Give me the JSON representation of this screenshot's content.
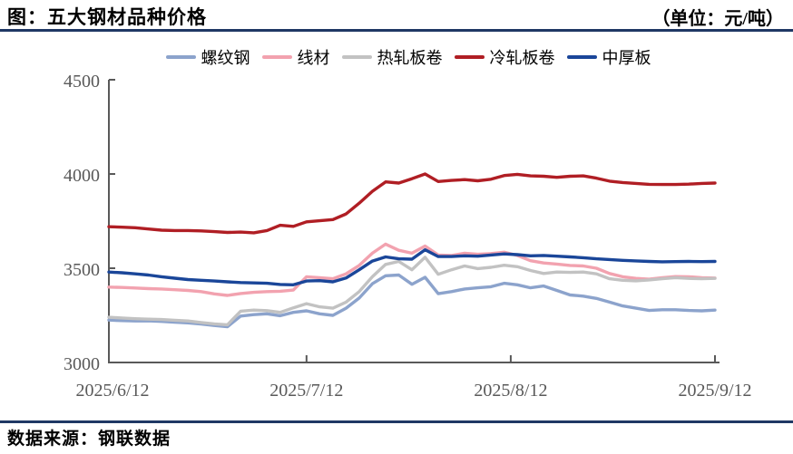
{
  "header": {
    "title": "图：五大钢材品种价格",
    "unit": "（单位：元/吨）"
  },
  "footer": {
    "source": "数据来源：钢联数据"
  },
  "colors": {
    "rule": "#1F3864",
    "axis": "#595959",
    "background": "#FFFFFF"
  },
  "chart_data": {
    "type": "line",
    "title": "五大钢材品种价格",
    "unit": "元/吨",
    "grid": false,
    "legend_position": "top",
    "ylim": [
      3000,
      4500
    ],
    "y_ticks": [
      3000,
      3500,
      4000,
      4500
    ],
    "x_tick_labels": [
      "2025/6/12",
      "2025/7/12",
      "2025/8/12",
      "2025/9/12"
    ],
    "x_tick_days": [
      0,
      30,
      61,
      92
    ],
    "x_days": [
      0,
      2,
      4,
      6,
      8,
      10,
      12,
      14,
      16,
      18,
      20,
      22,
      24,
      26,
      28,
      30,
      32,
      34,
      36,
      38,
      40,
      42,
      44,
      46,
      48,
      50,
      52,
      54,
      56,
      58,
      60,
      62,
      64,
      66,
      68,
      70,
      72,
      74,
      76,
      78,
      80,
      82,
      84,
      86,
      88,
      90,
      92
    ],
    "series": [
      {
        "name": "螺纹钢",
        "slug": "rebar",
        "color": "#8CA3CC",
        "values": [
          3225,
          3222,
          3220,
          3221,
          3218,
          3214,
          3210,
          3204,
          3196,
          3190,
          3246,
          3254,
          3258,
          3248,
          3266,
          3274,
          3258,
          3250,
          3288,
          3342,
          3418,
          3460,
          3464,
          3415,
          3452,
          3365,
          3376,
          3390,
          3396,
          3402,
          3420,
          3412,
          3396,
          3406,
          3382,
          3358,
          3352,
          3340,
          3320,
          3300,
          3288,
          3276,
          3280,
          3280,
          3276,
          3274,
          3278
        ]
      },
      {
        "name": "线材",
        "slug": "wire-rod",
        "color": "#F2A2AF",
        "values": [
          3400,
          3398,
          3395,
          3392,
          3390,
          3386,
          3382,
          3376,
          3364,
          3356,
          3366,
          3372,
          3376,
          3378,
          3384,
          3455,
          3450,
          3444,
          3470,
          3515,
          3580,
          3628,
          3595,
          3580,
          3618,
          3570,
          3568,
          3580,
          3574,
          3578,
          3585,
          3568,
          3540,
          3528,
          3522,
          3515,
          3512,
          3500,
          3472,
          3455,
          3446,
          3442,
          3450,
          3456,
          3455,
          3450,
          3448
        ]
      },
      {
        "name": "热轧板卷",
        "slug": "hot-rolled-coil",
        "color": "#C2C2C2",
        "values": [
          3240,
          3236,
          3232,
          3230,
          3228,
          3224,
          3220,
          3212,
          3205,
          3200,
          3272,
          3278,
          3275,
          3266,
          3290,
          3312,
          3295,
          3288,
          3320,
          3376,
          3455,
          3520,
          3536,
          3492,
          3558,
          3468,
          3492,
          3512,
          3498,
          3505,
          3516,
          3508,
          3488,
          3472,
          3480,
          3478,
          3480,
          3470,
          3444,
          3436,
          3433,
          3438,
          3444,
          3450,
          3446,
          3444,
          3446
        ]
      },
      {
        "name": "冷轧板卷",
        "slug": "cold-rolled-coil",
        "color": "#B01E24",
        "values": [
          3720,
          3718,
          3715,
          3708,
          3702,
          3700,
          3700,
          3698,
          3694,
          3690,
          3692,
          3688,
          3700,
          3728,
          3722,
          3746,
          3752,
          3758,
          3788,
          3845,
          3908,
          3958,
          3952,
          3975,
          4000,
          3960,
          3966,
          3970,
          3964,
          3972,
          3992,
          3998,
          3990,
          3988,
          3982,
          3988,
          3990,
          3978,
          3962,
          3955,
          3950,
          3945,
          3944,
          3944,
          3946,
          3950,
          3952
        ]
      },
      {
        "name": "中厚板",
        "slug": "medium-plate",
        "color": "#1A4699",
        "values": [
          3480,
          3476,
          3470,
          3464,
          3455,
          3447,
          3440,
          3436,
          3432,
          3428,
          3424,
          3422,
          3420,
          3414,
          3412,
          3432,
          3434,
          3428,
          3448,
          3492,
          3538,
          3560,
          3550,
          3548,
          3598,
          3562,
          3562,
          3566,
          3564,
          3570,
          3576,
          3572,
          3566,
          3568,
          3564,
          3560,
          3556,
          3550,
          3546,
          3542,
          3539,
          3536,
          3534,
          3535,
          3536,
          3535,
          3536
        ]
      }
    ]
  }
}
